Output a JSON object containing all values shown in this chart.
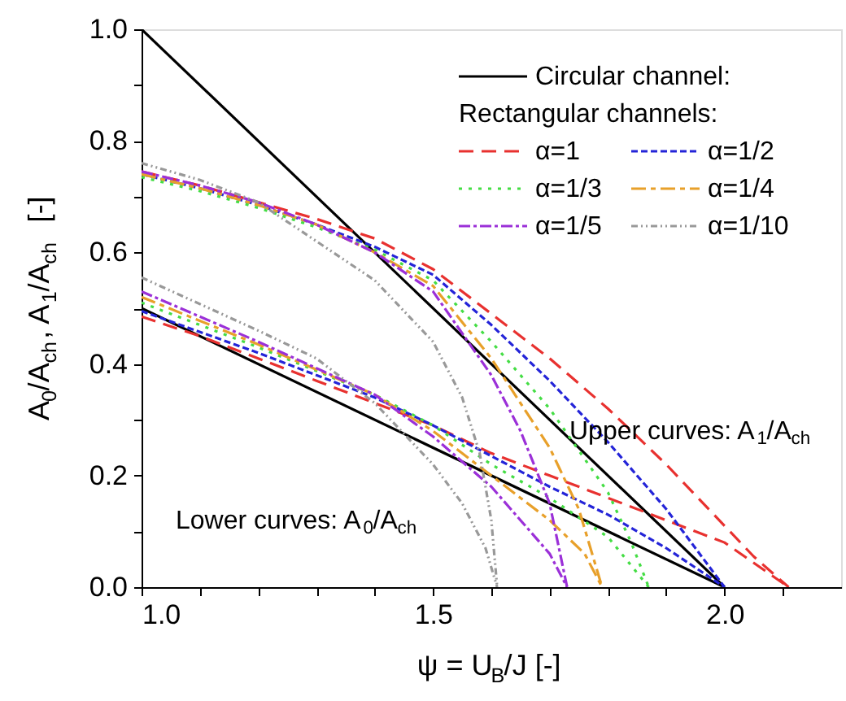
{
  "chart_data": {
    "type": "line",
    "xlabel": "ψ = U$_{B}$/J  [-]",
    "ylabel": "A$_{0}$/A$_{ch}$, A$_{1}$/A$_{ch}$  [-]",
    "legend_title": "Rectangular channels:",
    "legend": "top right",
    "grid": false,
    "xlim": [
      1.0,
      2.2
    ],
    "xticks": [
      {
        "value": 1.0,
        "label": "1.0"
      },
      {
        "value": 1.1,
        "label": null
      },
      {
        "value": 1.2,
        "label": null
      },
      {
        "value": 1.3,
        "label": null
      },
      {
        "value": 1.4,
        "label": null
      },
      {
        "value": 1.5,
        "label": "1.5"
      },
      {
        "value": 1.6,
        "label": null
      },
      {
        "value": 1.7,
        "label": null
      },
      {
        "value": 1.8,
        "label": null
      },
      {
        "value": 1.9,
        "label": null
      },
      {
        "value": 2.0,
        "label": "2.0"
      },
      {
        "value": 2.1,
        "label": null
      }
    ],
    "ylim": [
      0,
      1.0
    ],
    "yticks": [
      {
        "value": 0,
        "label": "0.0"
      },
      {
        "value": 0.1,
        "label": null
      },
      {
        "value": 0.2,
        "label": "0.2"
      },
      {
        "value": 0.3,
        "label": null
      },
      {
        "value": 0.4,
        "label": "0.4"
      },
      {
        "value": 0.5,
        "label": null
      },
      {
        "value": 0.6,
        "label": "0.6"
      },
      {
        "value": 0.7,
        "label": null
      },
      {
        "value": 0.8,
        "label": "0.8"
      },
      {
        "value": 0.9,
        "label": null
      },
      {
        "value": 1.0,
        "label": "1.0"
      }
    ],
    "annotations": [
      "Upper curves: A$_{1}$/A$_{ch}$",
      "Lower curves: A$_{0}$/A$_{ch}$"
    ],
    "series": [
      {
        "name": "Circular channel:",
        "color": "#000000",
        "line_style": "solid",
        "x": [
          1.0,
          2.0
        ],
        "values": [
          1.0,
          0
        ]
      },
      {
        "color": "#000000",
        "line_style": "solid",
        "x": [
          1.0,
          2.0
        ],
        "values": [
          0.5,
          0
        ]
      },
      {
        "name": "α=1",
        "color": "#e8312f",
        "line_style": "dashed",
        "x": [
          1.0,
          1.1,
          1.2,
          1.3,
          1.4,
          1.5,
          1.6,
          1.7,
          1.8,
          1.9,
          2.0,
          2.05,
          2.11
        ],
        "values": [
          0.745,
          0.72,
          0.69,
          0.66,
          0.625,
          0.57,
          0.49,
          0.41,
          0.32,
          0.22,
          0.11,
          0.055,
          0
        ]
      },
      {
        "color": "#e8312f",
        "line_style": "dashed",
        "x": [
          1.0,
          1.1,
          1.2,
          1.3,
          1.4,
          1.5,
          1.6,
          1.7,
          1.8,
          1.9,
          2.0,
          2.11
        ],
        "values": [
          0.485,
          0.45,
          0.41,
          0.37,
          0.33,
          0.29,
          0.24,
          0.2,
          0.16,
          0.12,
          0.08,
          0
        ]
      },
      {
        "name": "α=1/2",
        "color": "#2424d8",
        "line_style": "dashed",
        "x": [
          1.0,
          1.1,
          1.2,
          1.3,
          1.4,
          1.5,
          1.6,
          1.7,
          1.8,
          1.9,
          1.95,
          2.0
        ],
        "values": [
          0.74,
          0.715,
          0.685,
          0.65,
          0.61,
          0.56,
          0.47,
          0.37,
          0.26,
          0.14,
          0.07,
          0
        ]
      },
      {
        "color": "#2424d8",
        "line_style": "dashed",
        "x": [
          1.0,
          1.2,
          1.4,
          1.5,
          1.6,
          1.7,
          1.8,
          1.9,
          2.0
        ],
        "values": [
          0.495,
          0.42,
          0.34,
          0.29,
          0.235,
          0.18,
          0.13,
          0.07,
          0
        ]
      },
      {
        "name": "α=1/3",
        "color": "#44dd44",
        "line_style": "dotted",
        "x": [
          1.0,
          1.1,
          1.2,
          1.3,
          1.4,
          1.5,
          1.6,
          1.7,
          1.8,
          1.84,
          1.87
        ],
        "values": [
          0.735,
          0.71,
          0.68,
          0.645,
          0.605,
          0.55,
          0.44,
          0.32,
          0.17,
          0.08,
          0
        ]
      },
      {
        "color": "#44dd44",
        "line_style": "dotted",
        "x": [
          1.0,
          1.2,
          1.4,
          1.5,
          1.6,
          1.7,
          1.8,
          1.87
        ],
        "values": [
          0.51,
          0.43,
          0.345,
          0.29,
          0.22,
          0.16,
          0.09,
          0
        ]
      },
      {
        "name": "α=1/4",
        "color": "#e8a02a",
        "line_style": "dashed",
        "x": [
          1.0,
          1.1,
          1.2,
          1.3,
          1.4,
          1.5,
          1.6,
          1.7,
          1.75,
          1.79
        ],
        "values": [
          0.74,
          0.715,
          0.685,
          0.65,
          0.6,
          0.54,
          0.41,
          0.25,
          0.14,
          0
        ]
      },
      {
        "color": "#e8a02a",
        "line_style": "dashed",
        "x": [
          1.0,
          1.2,
          1.4,
          1.5,
          1.6,
          1.7,
          1.76,
          1.79
        ],
        "values": [
          0.52,
          0.435,
          0.345,
          0.28,
          0.2,
          0.12,
          0.06,
          0
        ]
      },
      {
        "name": "α=1/5",
        "color": "#9b30d8",
        "line_style": "dashed",
        "x": [
          1.0,
          1.1,
          1.2,
          1.3,
          1.4,
          1.5,
          1.6,
          1.65,
          1.7,
          1.73
        ],
        "values": [
          0.745,
          0.72,
          0.69,
          0.65,
          0.6,
          0.53,
          0.38,
          0.28,
          0.15,
          0
        ]
      },
      {
        "color": "#9b30d8",
        "line_style": "dashed",
        "x": [
          1.0,
          1.2,
          1.4,
          1.5,
          1.6,
          1.65,
          1.7,
          1.73
        ],
        "values": [
          0.53,
          0.44,
          0.345,
          0.27,
          0.18,
          0.12,
          0.06,
          0
        ]
      },
      {
        "name": "α=1/10",
        "color": "#999999",
        "line_style": "dashed",
        "x": [
          1.0,
          1.1,
          1.2,
          1.3,
          1.4,
          1.5,
          1.55,
          1.58,
          1.6,
          1.61
        ],
        "values": [
          0.76,
          0.73,
          0.69,
          0.62,
          0.55,
          0.44,
          0.34,
          0.24,
          0.12,
          0
        ]
      },
      {
        "color": "#999999",
        "line_style": "dashed",
        "x": [
          1.0,
          1.2,
          1.3,
          1.4,
          1.5,
          1.55,
          1.59,
          1.61
        ],
        "values": [
          0.555,
          0.46,
          0.41,
          0.33,
          0.22,
          0.15,
          0.07,
          0
        ]
      }
    ]
  }
}
